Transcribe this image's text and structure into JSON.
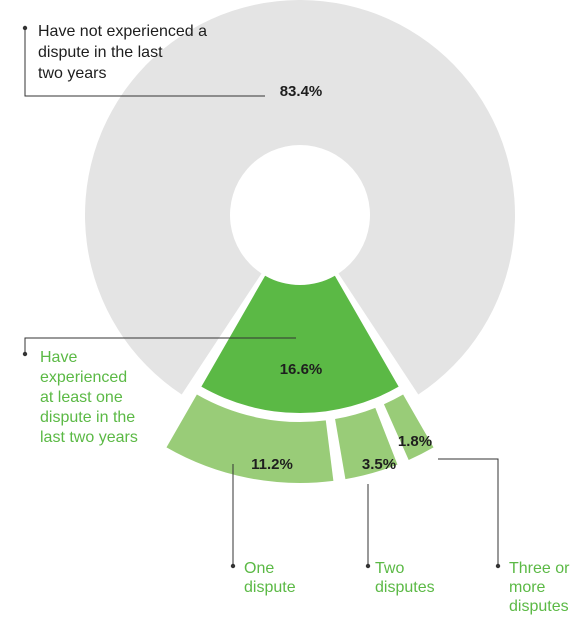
{
  "chart_data": {
    "type": "pie",
    "variant": "donut-with-breakdown",
    "segments": [
      {
        "key": "not_experienced",
        "label_lines": [
          "Have not experienced a",
          "dispute in the last",
          "two years"
        ],
        "value": 83.4,
        "value_label": "83.4%",
        "color": "#e4e4e4"
      },
      {
        "key": "experienced",
        "label_lines": [
          "Have",
          "experienced",
          "at least one",
          "dispute in the",
          "last two years"
        ],
        "value": 16.6,
        "value_label": "16.6%",
        "color": "#5bb945",
        "breakdown": [
          {
            "key": "one",
            "label_lines": [
              "One",
              "dispute"
            ],
            "value": 11.2,
            "value_label": "11.2%",
            "color": "#99cc78"
          },
          {
            "key": "two",
            "label_lines": [
              "Two",
              "disputes"
            ],
            "value": 3.5,
            "value_label": "3.5%",
            "color": "#99cc78"
          },
          {
            "key": "three_plus",
            "label_lines": [
              "Three or",
              "more",
              "disputes"
            ],
            "value": 1.8,
            "value_label": "1.8%",
            "color": "#99cc78"
          }
        ]
      }
    ]
  },
  "colors": {
    "text": "#1e1e1e",
    "green_label": "#5bb945",
    "leader": "#333333"
  }
}
